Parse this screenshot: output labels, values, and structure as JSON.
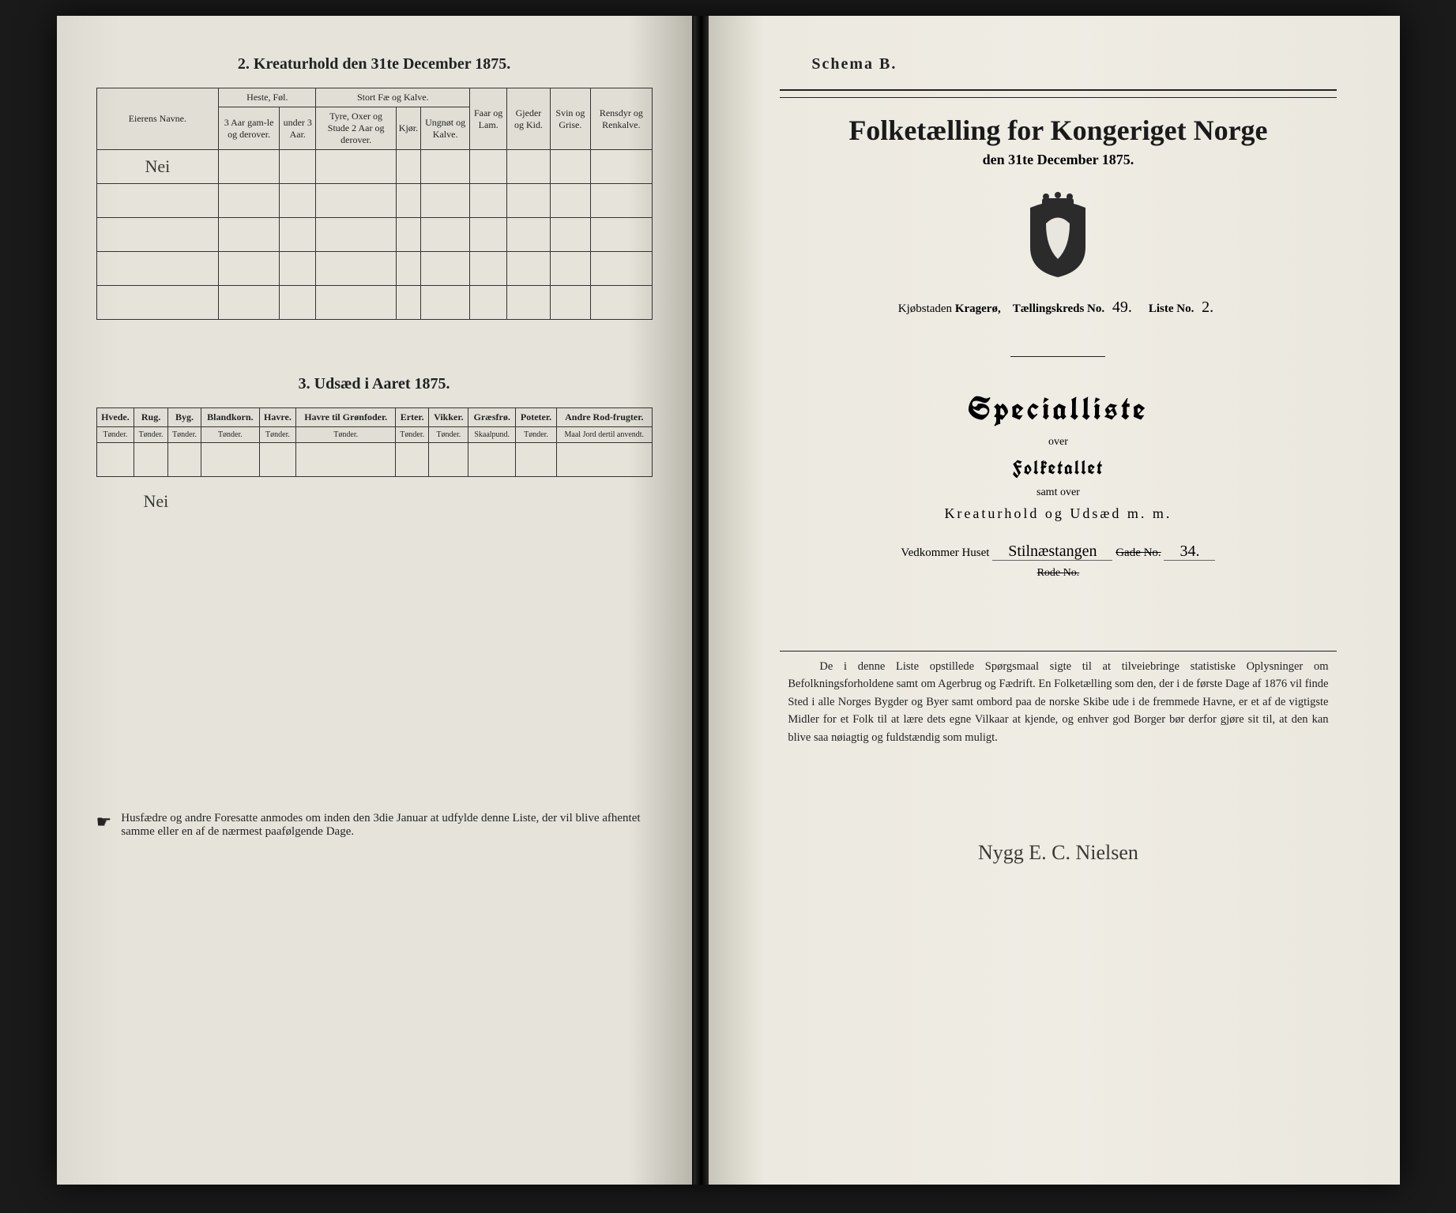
{
  "left": {
    "section2_title": "2.  Kreaturhold den 31te December 1875.",
    "table2": {
      "col_owner": "Eierens Navne.",
      "group_horses": "Heste, Føl.",
      "group_cattle": "Stort Fæ og Kalve.",
      "col_sheep": "Faar og Lam.",
      "col_goats": "Gjeder og Kid.",
      "col_pigs": "Svin og Grise.",
      "col_reindeer": "Rensdyr og Renkalve.",
      "sub_horse_old": "3 Aar gam-le og derover.",
      "sub_horse_young": "under 3 Aar.",
      "sub_bull": "Tyre, Oxer og Stude 2 Aar og derover.",
      "sub_cow": "Kjør.",
      "sub_calf": "Ungnøt og Kalve.",
      "handwritten_row": "Nei"
    },
    "section3_title": "3.  Udsæd i Aaret 1875.",
    "table3": {
      "cols": [
        {
          "h": "Hvede.",
          "u": "Tønder."
        },
        {
          "h": "Rug.",
          "u": "Tønder."
        },
        {
          "h": "Byg.",
          "u": "Tønder."
        },
        {
          "h": "Blandkorn.",
          "u": "Tønder."
        },
        {
          "h": "Havre.",
          "u": "Tønder."
        },
        {
          "h": "Havre til Grønfoder.",
          "u": "Tønder."
        },
        {
          "h": "Erter.",
          "u": "Tønder."
        },
        {
          "h": "Vikker.",
          "u": "Tønder."
        },
        {
          "h": "Græsfrø.",
          "u": "Skaalpund."
        },
        {
          "h": "Poteter.",
          "u": "Tønder."
        },
        {
          "h": "Andre Rod-frugter.",
          "u": "Maal Jord dertil anvendt."
        }
      ],
      "handwritten_below": "Nei"
    },
    "footnote": "Husfædre og andre Foresatte anmodes om inden den 3die Januar at udfylde denne Liste, der vil blive afhentet samme eller en af de nærmest paafølgende Dage."
  },
  "right": {
    "schema": "Schema B.",
    "title": "Folketælling for Kongeriget Norge",
    "subtitle": "den 31te December 1875.",
    "id_line": {
      "city_label": "Kjøbstaden",
      "city_value": "Kragerø,",
      "kreds_label": "Tællingskreds No.",
      "kreds_value": "49.",
      "liste_label": "Liste No.",
      "liste_value": "2."
    },
    "special": {
      "heading": "Specialliste",
      "over1": "over",
      "folketallet": "Folketallet",
      "samt": "samt over",
      "kreatur": "Kreaturhold og Udsæd m. m."
    },
    "house": {
      "prefix": "Vedkommer Huset",
      "street_hw": "Stilnæstangen",
      "gade_label": "Gade No.",
      "gade_value": "34."
    },
    "rode": "Rode No.",
    "paragraph": "De i denne Liste opstillede Spørgsmaal sigte til at tilveiebringe statistiske Oplysninger om Befolkningsforholdene samt om Agerbrug og Fædrift.  En Folketælling som den, der i de første Dage af 1876 vil finde Sted i alle Norges Bygder og Byer samt ombord paa de norske Skibe ude i de fremmede Havne, er et af de vigtigste Midler for et Folk til at lære dets egne Vilkaar at kjende, og enhver god Borger bør derfor gjøre sit til, at den kan blive saa nøiagtig og fuldstændig som muligt.",
    "signature": "Nygg E. C. Nielsen"
  },
  "colors": {
    "paper": "#e8e6de",
    "ink": "#222222",
    "border": "#333333"
  }
}
